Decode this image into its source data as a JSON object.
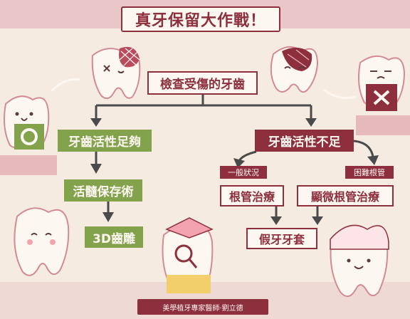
{
  "title": "真牙保留大作戰！",
  "start_node": "檢查受傷的牙齒",
  "branch_sufficient": {
    "label": "牙齒活性足夠",
    "steps": [
      "活髓保存術",
      "3D齒雕"
    ]
  },
  "branch_insufficient": {
    "label": "牙齒活性不足",
    "general_tag": "一般狀況",
    "general_treatment": "根管治療",
    "difficult_tag": "困難根管",
    "difficult_treatment": "顯微根管治療",
    "final": "假牙牙套"
  },
  "footer": "美學植牙專家醫師‧劉立德",
  "colors": {
    "dark_red": "#8e2f3d",
    "green": "#82a24c",
    "cream": "#fdf7f2",
    "background": "#f5ebe0",
    "arrow": "#4a4a4a"
  },
  "icons": {
    "ok": "circle-mark",
    "fail": "cross-mark"
  }
}
